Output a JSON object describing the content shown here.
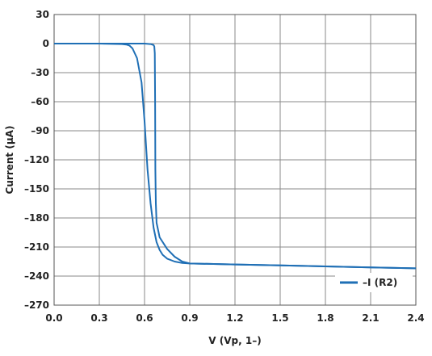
{
  "chart_data": {
    "type": "line",
    "title": "",
    "xlabel": "V (Vp, 1–)",
    "ylabel": "Current (µA)",
    "xlim": [
      0,
      2.4
    ],
    "ylim": [
      -270,
      30
    ],
    "xticks": [
      "0.0",
      "0.3",
      "0.6",
      "0.9",
      "1.2",
      "1.5",
      "1.8",
      "2.1",
      "2.4"
    ],
    "yticks": [
      "30",
      "0",
      "–30",
      "–60",
      "–90",
      "–120",
      "–150",
      "–180",
      "–210",
      "–240",
      "–270"
    ],
    "grid": true,
    "legend_position": "bottom-right",
    "series": [
      {
        "name": "–I (R2)",
        "color": "#1f6fb5",
        "segments": [
          {
            "x": [
              0.0,
              0.3,
              0.45,
              0.48,
              0.5,
              0.52,
              0.55,
              0.58,
              0.6,
              0.62,
              0.64,
              0.66,
              0.68,
              0.7,
              0.72,
              0.75,
              0.8,
              0.85,
              0.9,
              1.2,
              1.5,
              1.8,
              2.1,
              2.4
            ],
            "y": [
              0,
              0,
              -0.5,
              -1,
              -2,
              -5,
              -15,
              -40,
              -80,
              -130,
              -165,
              -190,
              -205,
              -213,
              -218,
              -222,
              -225,
              -226.5,
              -227,
              -228,
              -229,
              -230,
              -231,
              -232
            ]
          },
          {
            "x": [
              0.0,
              0.3,
              0.55,
              0.6,
              0.64,
              0.66,
              0.665,
              0.668,
              0.67,
              0.672,
              0.675,
              0.68,
              0.7,
              0.75,
              0.8,
              0.85,
              0.9,
              1.2,
              1.5,
              1.8,
              2.1,
              2.4
            ],
            "y": [
              0,
              0,
              0,
              0,
              -0.5,
              -1.5,
              -3,
              -10,
              -60,
              -130,
              -165,
              -185,
              -200,
              -212,
              -220,
              -225,
              -227,
              -228,
              -229,
              -230,
              -231,
              -232
            ]
          }
        ]
      }
    ]
  }
}
